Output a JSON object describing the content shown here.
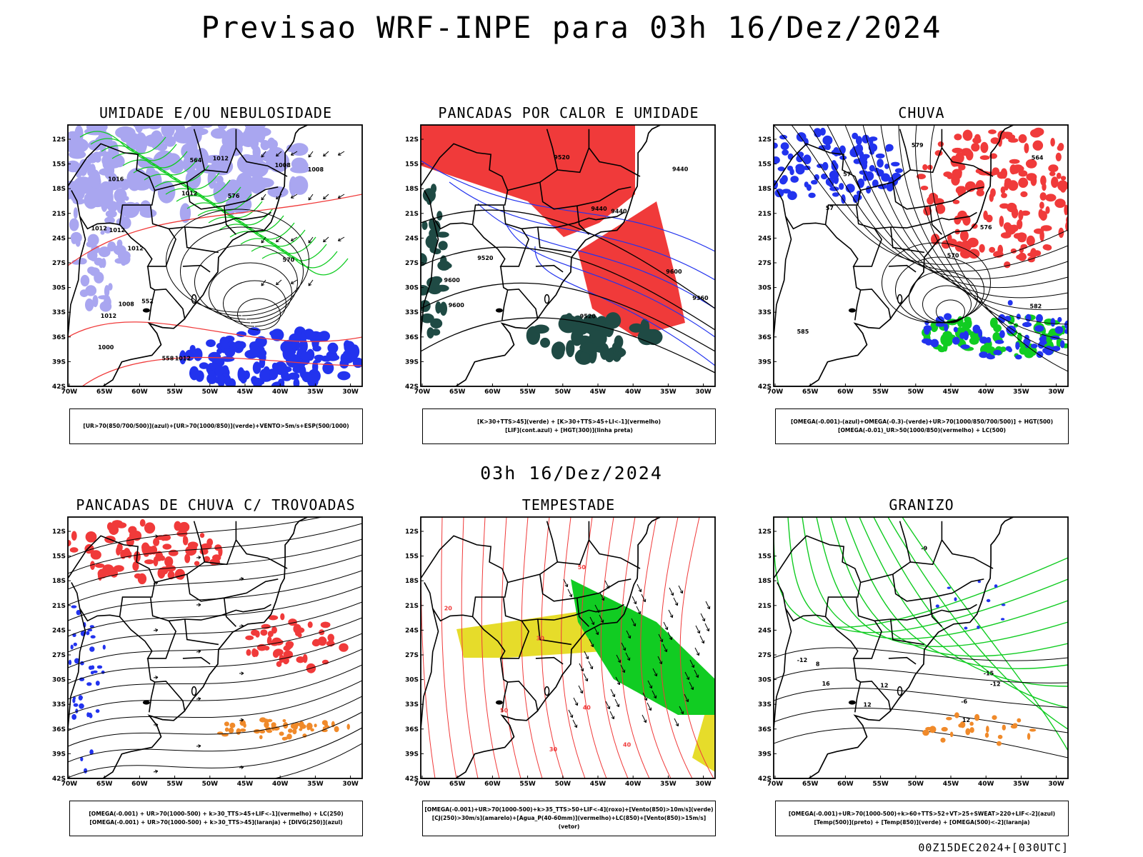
{
  "header": {
    "title": "Previsao WRF-INPE  para 03h 16/Dez/2024",
    "mid_title": "03h 16/Dez/2024",
    "footer": "00Z15DEC2024+[030UTC]"
  },
  "axes": {
    "lat_labels": [
      "12S",
      "15S",
      "18S",
      "21S",
      "24S",
      "27S",
      "30S",
      "33S",
      "36S",
      "39S",
      "42S"
    ],
    "lon_labels": [
      "70W",
      "65W",
      "60W",
      "55W",
      "50W",
      "45W",
      "40W",
      "35W",
      "30W"
    ]
  },
  "colors": {
    "blue": "#2233ee",
    "lavender": "#a9a6f0",
    "green": "#11cc22",
    "red": "#f03a3a",
    "darkgreen": "#1f4a44",
    "yellow": "#e6dc2a",
    "orange": "#f08a2a",
    "purple": "#9a2ad0"
  },
  "panels": [
    {
      "title": "UMIDADE E/OU NEBULOSIDADE",
      "legend": [
        "[UR>70(850/700/500)](azul)+[UR>70(1000/850)](verde)+VENTO>5m/s+ESP(500/1000)"
      ],
      "labels": [
        "1012",
        "1012",
        "1012",
        "1012",
        "1012",
        "1012",
        "1008",
        "1008",
        "1000",
        "1016",
        "1008",
        "1012",
        "576",
        "570",
        "564",
        "558",
        "552"
      ]
    },
    {
      "title": "PANCADAS POR CALOR E UMIDADE",
      "legend": [
        "[K>30+TTS>45](verde) + [K>30+TTS>45+LI<-1](vermelho)",
        "[LIF](cont.azul) + [HGT(300)](linha preta)"
      ],
      "labels": [
        "9600",
        "9600",
        "9520",
        "9520",
        "9440",
        "9440",
        "9360",
        "9600",
        "9520",
        "9440"
      ]
    },
    {
      "title": "CHUVA",
      "legend": [
        "[OMEGA(-0.001)-(azul)+OMEGA(-0.3)-(verde)+UR>70(1000/850/700/500)] + HGT(500)",
        "[OMEGA(-0.01)_UR>50(1000/850)(vermelho) + LC(500)"
      ],
      "labels": [
        "585",
        "576",
        "570",
        "564",
        "579",
        "57",
        "57",
        "582"
      ]
    },
    {
      "title": "PANCADAS DE CHUVA C/ TROVOADAS",
      "legend": [
        "[OMEGA(-0.001) + UR>70(1000-500) + k>30_TTS>45+LIF<-1](vermelho) + LC(250)",
        "[OMEGA(-0.001) + UR>70(1000-500) + k>30_TTS>45](laranja) + [DIVG(250)](azul)"
      ],
      "labels": []
    },
    {
      "title": "TEMPESTADE",
      "legend": [
        "[OMEGA(-0.001)+UR>70(1000-500)+k>35_TTS>50+LIF<-4](roxo)+[Vento(850)>10m/s](verde)",
        "[CJ(250)>30m/s](amarelo)+[Agua_P(40-60mm)](vermelho)+LC(850)+[Vento(850)>15m/s](vetor)"
      ],
      "labels": [
        "20",
        "30",
        "40",
        "50",
        "40",
        "50",
        "30"
      ]
    },
    {
      "title": "GRANIZO",
      "legend": [
        "[OMEGA(-0.001)+UR>70(1000-500)+k>60+TTS>52+VT>25+SWEAT>220+LIF<-2](azul)",
        "[Temp(500)](preto) + [Temp(850)](verde) + [OMEGA(500)<-2](laranja)"
      ],
      "labels": [
        "-12",
        "12",
        "-12",
        "12",
        "16",
        "-15",
        "-9",
        "-6",
        "8",
        "12"
      ]
    }
  ]
}
